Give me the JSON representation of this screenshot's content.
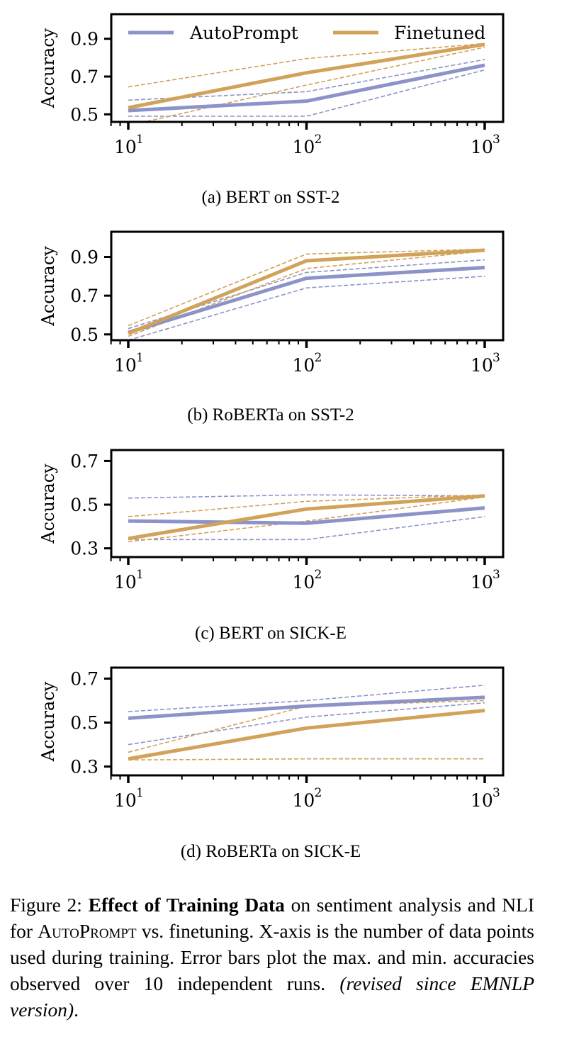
{
  "figure": {
    "caption_label": "Figure 2:",
    "caption_bold": "Effect of Training Data",
    "caption_text_1": " on sentiment analysis and NLI for ",
    "caption_smallcaps": "AutoPrompt",
    "caption_text_2": " vs. finetuning. X-axis is the number of data points used during training. Error bars plot the max. and min. accuracies observed over 10 independent runs. ",
    "caption_italic": "(revised since EMNLP version)",
    "caption_end": "."
  },
  "colors": {
    "autoprompt": "#8c93c9",
    "finetuned": "#d1a25a"
  },
  "chart_data": [
    {
      "type": "line",
      "title": "(a) BERT on SST-2",
      "xlabel": "",
      "ylabel": "Accuracy",
      "xscale": "log",
      "x": [
        10,
        100,
        1000
      ],
      "xticks": [
        10,
        100,
        1000
      ],
      "xtick_labels": [
        "10",
        "10",
        "10"
      ],
      "xtick_exponents": [
        "1",
        "2",
        "3"
      ],
      "yticks": [
        0.5,
        0.7,
        0.9
      ],
      "ytick_labels": [
        "0.5",
        "0.7",
        "0.9"
      ],
      "ylim": [
        0.46,
        1.03
      ],
      "grid": false,
      "legend": {
        "placement": "top",
        "entries": [
          "AutoPrompt",
          "Finetuned"
        ]
      },
      "series": [
        {
          "name": "AutoPrompt",
          "mean": [
            0.52,
            0.57,
            0.76
          ],
          "max": [
            0.575,
            0.62,
            0.79
          ],
          "min": [
            0.49,
            0.49,
            0.735
          ]
        },
        {
          "name": "Finetuned",
          "mean": [
            0.535,
            0.72,
            0.87
          ],
          "max": [
            0.645,
            0.795,
            0.875
          ],
          "min": [
            0.44,
            0.655,
            0.855
          ]
        }
      ]
    },
    {
      "type": "line",
      "title": "(b) RoBERTa on SST-2",
      "xlabel": "",
      "ylabel": "Accuracy",
      "xscale": "log",
      "x": [
        10,
        100,
        1000
      ],
      "xticks": [
        10,
        100,
        1000
      ],
      "xtick_labels": [
        "10",
        "10",
        "10"
      ],
      "xtick_exponents": [
        "1",
        "2",
        "3"
      ],
      "yticks": [
        0.5,
        0.7,
        0.9
      ],
      "ytick_labels": [
        "0.5",
        "0.7",
        "0.9"
      ],
      "ylim": [
        0.47,
        1.03
      ],
      "grid": false,
      "legend": null,
      "series": [
        {
          "name": "AutoPrompt",
          "mean": [
            0.51,
            0.79,
            0.845
          ],
          "max": [
            0.53,
            0.82,
            0.885
          ],
          "min": [
            0.47,
            0.74,
            0.8
          ]
        },
        {
          "name": "Finetuned",
          "mean": [
            0.505,
            0.88,
            0.935
          ],
          "max": [
            0.545,
            0.915,
            0.94
          ],
          "min": [
            0.49,
            0.84,
            0.93
          ]
        }
      ]
    },
    {
      "type": "line",
      "title": "(c) BERT on SICK-E",
      "xlabel": "",
      "ylabel": "Accuracy",
      "xscale": "log",
      "x": [
        10,
        100,
        1000
      ],
      "xticks": [
        10,
        100,
        1000
      ],
      "xtick_labels": [
        "10",
        "10",
        "10"
      ],
      "xtick_exponents": [
        "1",
        "2",
        "3"
      ],
      "yticks": [
        0.3,
        0.5,
        0.7
      ],
      "ytick_labels": [
        "0.3",
        "0.5",
        "0.7"
      ],
      "ylim": [
        0.26,
        0.75
      ],
      "grid": false,
      "legend": null,
      "series": [
        {
          "name": "AutoPrompt",
          "mean": [
            0.425,
            0.415,
            0.485
          ],
          "max": [
            0.53,
            0.545,
            0.54
          ],
          "min": [
            0.34,
            0.34,
            0.445
          ]
        },
        {
          "name": "Finetuned",
          "mean": [
            0.345,
            0.48,
            0.54
          ],
          "max": [
            0.445,
            0.515,
            0.545
          ],
          "min": [
            0.33,
            0.425,
            0.535
          ]
        }
      ]
    },
    {
      "type": "line",
      "title": "(d) RoBERTa on SICK-E",
      "xlabel": "",
      "ylabel": "Accuracy",
      "xscale": "log",
      "x": [
        10,
        100,
        1000
      ],
      "xticks": [
        10,
        100,
        1000
      ],
      "xtick_labels": [
        "10",
        "10",
        "10"
      ],
      "xtick_exponents": [
        "1",
        "2",
        "3"
      ],
      "yticks": [
        0.3,
        0.5,
        0.7
      ],
      "ytick_labels": [
        "0.3",
        "0.5",
        "0.7"
      ],
      "ylim": [
        0.26,
        0.75
      ],
      "grid": false,
      "legend": null,
      "series": [
        {
          "name": "AutoPrompt",
          "mean": [
            0.52,
            0.575,
            0.615
          ],
          "max": [
            0.55,
            0.6,
            0.67
          ],
          "min": [
            0.4,
            0.525,
            0.59
          ]
        },
        {
          "name": "Finetuned",
          "mean": [
            0.335,
            0.475,
            0.555
          ],
          "max": [
            0.365,
            0.575,
            0.6
          ],
          "min": [
            0.33,
            0.335,
            0.335
          ]
        }
      ]
    }
  ]
}
